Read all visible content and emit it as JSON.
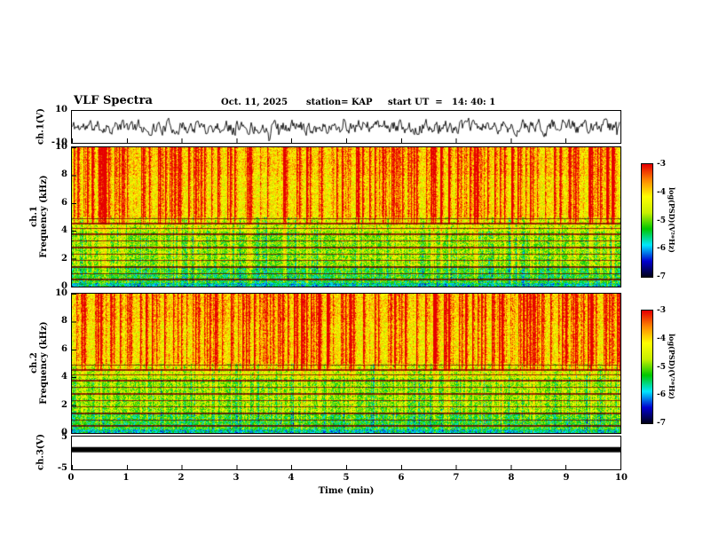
{
  "header": {
    "title": "VLF Spectra",
    "date": "Oct. 11, 2025",
    "station": "station= KAP",
    "start_ut": "start UT  =   14: 40: 1"
  },
  "left_axis": {
    "ch1_wave_label": "ch.1(V)",
    "ch1_spec_label_ch": "ch.1",
    "ch1_spec_label_freq": "Frequency (kHz)",
    "ch2_spec_label_ch": "ch.2",
    "ch2_spec_label_freq": "Frequency (kHz)",
    "ch3_label": "ch.3(V)"
  },
  "ticks": {
    "wave_y": [
      "10",
      "-10"
    ],
    "freq_y": [
      "10",
      "8",
      "6",
      "4",
      "2",
      "0"
    ],
    "ch3_y": [
      "5",
      "-5"
    ],
    "x": [
      "0",
      "1",
      "2",
      "3",
      "4",
      "5",
      "6",
      "7",
      "8",
      "9",
      "10"
    ],
    "colorbar": [
      "-3",
      "-4",
      "-5",
      "-6",
      "-7"
    ]
  },
  "xaxis_label": "Time (min)",
  "colorbar_label": "log(PSD)(V²*Hz)",
  "chart_data": [
    {
      "type": "line",
      "panel": "ch.1(V) waveform",
      "x_range_min": [
        0,
        10
      ],
      "y_range_V": [
        -10,
        10
      ],
      "series": [
        {
          "name": "ch.1(V)",
          "description": "continuous broadband VLF noise waveform, zero mean",
          "mean_V": 0,
          "typical_peak_V": 5,
          "max_abs_V": 9
        }
      ],
      "render": {
        "seed": 11,
        "smooth": 0.55,
        "step_V": 7,
        "spike_prob": 0.02
      }
    },
    {
      "type": "heatmap",
      "panel": "ch.1 spectrogram",
      "x_range_min": [
        0,
        10
      ],
      "y_range_kHz": [
        0,
        10
      ],
      "z_label": "log(PSD)(V²*Hz)",
      "z_range": [
        -7,
        -3
      ],
      "colormap": [
        "#000014",
        "#0000d0",
        "#00e8ff",
        "#00c800",
        "#c8f000",
        "#ffff00",
        "#ff8c00",
        "#e60000"
      ],
      "hum_lines_khz": [
        4.9,
        4.55,
        4.2,
        3.8,
        3.3,
        2.85,
        2.35,
        1.9,
        1.45,
        0.95,
        0.55
      ],
      "features": "dense red vertical sferic streaks strongest above ~4.5 kHz; yellow-green background 5-10 kHz; green/cyan background below 5 kHz; dark horizontal interference lines below 5 kHz; darker band near 0 kHz",
      "render": {
        "seed": 42,
        "streak_prob": 0.33,
        "patch_prob": 0.18
      }
    },
    {
      "type": "heatmap",
      "panel": "ch.2 spectrogram",
      "x_range_min": [
        0,
        10
      ],
      "y_range_kHz": [
        0,
        10
      ],
      "z_label": "log(PSD)(V²*Hz)",
      "z_range": [
        -7,
        -3
      ],
      "colormap": [
        "#000014",
        "#0000d0",
        "#00e8ff",
        "#00c800",
        "#c8f000",
        "#ffff00",
        "#ff8c00",
        "#e60000"
      ],
      "hum_lines_khz": [
        4.9,
        4.55,
        4.2,
        3.8,
        3.3,
        2.85,
        2.35,
        1.9,
        1.45,
        0.95,
        0.55
      ],
      "features": "same structure as ch.1 spectrogram",
      "render": {
        "seed": 77,
        "streak_prob": 0.33,
        "patch_prob": 0.18
      }
    },
    {
      "type": "line",
      "panel": "ch.3(V)",
      "x_range_min": [
        0,
        10
      ],
      "y_range_V": [
        -5,
        5
      ],
      "series": [
        {
          "name": "ch.3(V)",
          "description": "flat saturated thick black trace spanning full time range",
          "value_V": 1.0,
          "thickness_V": 1.6
        }
      ],
      "render": {
        "seed": 5
      }
    }
  ]
}
